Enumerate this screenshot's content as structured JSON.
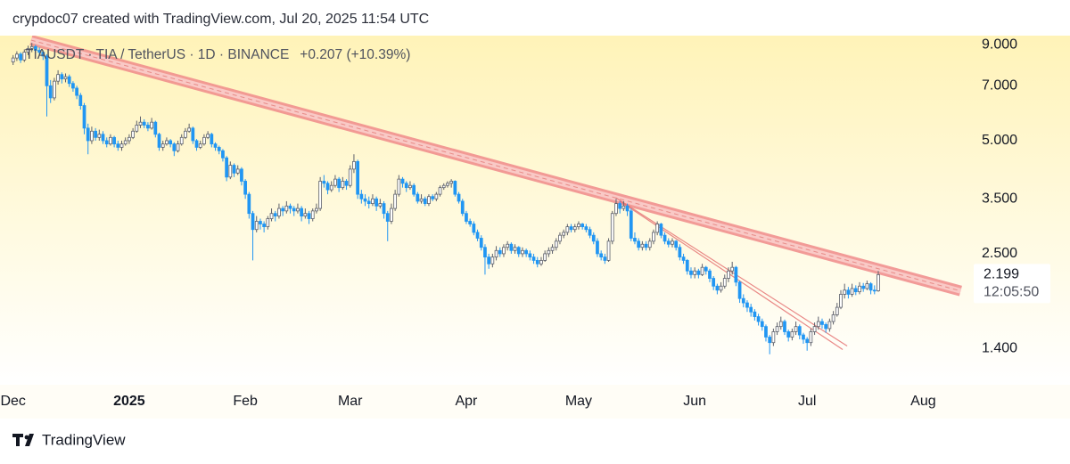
{
  "chart_data": {
    "type": "candlestick",
    "header": "crypdoc07 created with TradingView.com, Jul 20, 2025 11:54 UTC",
    "symbol": "TIAUSDT · TIA / TetherUS · 1D · BINANCE",
    "change_text": "+0.207 (+10.39%)",
    "last_price": {
      "value": 2.199,
      "label": "2.199"
    },
    "countdown": "12:05:50",
    "brand": "TradingView",
    "log_scale": true,
    "grid": false,
    "up_color": "#ffffff",
    "down_color": "#2196f3",
    "ylim": [
      1.12,
      9.52
    ],
    "yticks": [
      {
        "value": 1.4,
        "label": "1.400"
      },
      {
        "value": 2.5,
        "label": "2.500"
      },
      {
        "value": 3.5,
        "label": "3.500"
      },
      {
        "value": 5,
        "label": "5.000"
      },
      {
        "value": 7,
        "label": "7.000"
      },
      {
        "value": 9,
        "label": "9.000"
      }
    ],
    "xlim": [
      -3.5,
      256
    ],
    "xticks": [
      {
        "value": 0,
        "label": "Dec"
      },
      {
        "value": 31,
        "label": "2025"
      },
      {
        "value": 62,
        "label": "Feb"
      },
      {
        "value": 90,
        "label": "Mar"
      },
      {
        "value": 121,
        "label": "Apr"
      },
      {
        "value": 151,
        "label": "May"
      },
      {
        "value": 182,
        "label": "Jun"
      },
      {
        "value": 212,
        "label": "Jul"
      },
      {
        "value": 243,
        "label": "Aug"
      }
    ],
    "trendlines": [
      {
        "start": [
          4.8,
          9.26
        ],
        "end": [
          253,
          1.99
        ],
        "color": "#f08a8a",
        "width": 12
      },
      {
        "start": [
          161,
          3.52
        ],
        "end": [
          222.7,
          1.42
        ],
        "color": "#e57373",
        "width": 1.2
      },
      {
        "start": [
          162,
          3.45
        ],
        "end": [
          221.5,
          1.39
        ],
        "color": "#e57373",
        "width": 1.2
      }
    ],
    "ohlc": [
      [
        8.1,
        8.45,
        7.95,
        8.3
      ],
      [
        8.3,
        8.65,
        8.15,
        8.5
      ],
      [
        8.5,
        8.6,
        8.05,
        8.2
      ],
      [
        8.2,
        8.75,
        8.1,
        8.6
      ],
      [
        8.6,
        8.95,
        8.45,
        8.8
      ],
      [
        8.8,
        9.1,
        8.6,
        8.9
      ],
      [
        8.9,
        9.0,
        8.55,
        8.7
      ],
      [
        8.7,
        8.85,
        8.45,
        8.6
      ],
      [
        8.6,
        8.7,
        8.2,
        8.4
      ],
      [
        8.4,
        8.5,
        5.8,
        7.0
      ],
      [
        7.0,
        7.25,
        6.3,
        6.5
      ],
      [
        6.5,
        7.35,
        6.4,
        7.2
      ],
      [
        7.2,
        7.7,
        7.05,
        7.5
      ],
      [
        7.5,
        7.6,
        7.1,
        7.3
      ],
      [
        7.3,
        7.55,
        7.15,
        7.4
      ],
      [
        7.4,
        7.5,
        6.95,
        7.1
      ],
      [
        7.1,
        7.2,
        6.75,
        6.9
      ],
      [
        6.9,
        7.0,
        6.45,
        6.6
      ],
      [
        6.6,
        6.7,
        6.05,
        6.2
      ],
      [
        6.2,
        6.3,
        5.2,
        5.4
      ],
      [
        5.4,
        5.55,
        4.6,
        5.0
      ],
      [
        5.0,
        5.45,
        4.9,
        5.3
      ],
      [
        5.3,
        5.4,
        5.0,
        5.1
      ],
      [
        5.1,
        5.35,
        5.0,
        5.2
      ],
      [
        5.2,
        5.3,
        4.9,
        5.0
      ],
      [
        5.0,
        5.1,
        4.8,
        4.9
      ],
      [
        4.9,
        5.2,
        4.85,
        5.1
      ],
      [
        5.1,
        5.15,
        4.8,
        4.9
      ],
      [
        4.9,
        5.0,
        4.7,
        4.8
      ],
      [
        4.8,
        5.0,
        4.7,
        4.9
      ],
      [
        4.9,
        5.1,
        4.85,
        5.0
      ],
      [
        5.0,
        5.2,
        4.9,
        5.1
      ],
      [
        5.1,
        5.4,
        5.05,
        5.3
      ],
      [
        5.3,
        5.65,
        5.25,
        5.5
      ],
      [
        5.5,
        5.8,
        5.4,
        5.6
      ],
      [
        5.6,
        5.7,
        5.4,
        5.5
      ],
      [
        5.5,
        5.6,
        5.3,
        5.4
      ],
      [
        5.4,
        5.75,
        5.35,
        5.6
      ],
      [
        5.6,
        5.65,
        5.1,
        5.2
      ],
      [
        5.2,
        5.25,
        4.7,
        4.8
      ],
      [
        4.8,
        5.0,
        4.7,
        4.9
      ],
      [
        4.9,
        5.1,
        4.85,
        5.0
      ],
      [
        5.0,
        5.05,
        4.8,
        4.9
      ],
      [
        4.9,
        4.95,
        4.55,
        4.7
      ],
      [
        4.7,
        5.0,
        4.65,
        4.9
      ],
      [
        4.9,
        5.2,
        4.85,
        5.1
      ],
      [
        5.1,
        5.4,
        5.05,
        5.3
      ],
      [
        5.3,
        5.55,
        5.25,
        5.4
      ],
      [
        5.4,
        5.45,
        4.9,
        5.0
      ],
      [
        5.0,
        5.05,
        4.7,
        4.8
      ],
      [
        4.8,
        5.0,
        4.75,
        4.9
      ],
      [
        4.9,
        5.2,
        4.85,
        5.1
      ],
      [
        5.1,
        5.3,
        5.05,
        5.2
      ],
      [
        5.2,
        5.25,
        4.8,
        4.9
      ],
      [
        4.9,
        4.95,
        4.7,
        4.8
      ],
      [
        4.8,
        4.85,
        4.6,
        4.7
      ],
      [
        4.7,
        4.75,
        4.4,
        4.5
      ],
      [
        4.5,
        4.55,
        3.9,
        4.0
      ],
      [
        4.0,
        4.4,
        3.95,
        4.3
      ],
      [
        4.3,
        4.35,
        4.0,
        4.1
      ],
      [
        4.1,
        4.3,
        4.05,
        4.2
      ],
      [
        4.2,
        4.25,
        3.8,
        3.9
      ],
      [
        3.9,
        3.95,
        3.5,
        3.6
      ],
      [
        3.6,
        3.65,
        3.1,
        3.2
      ],
      [
        3.2,
        3.25,
        2.4,
        2.9
      ],
      [
        2.9,
        3.15,
        2.85,
        3.05
      ],
      [
        3.05,
        3.1,
        2.9,
        3.0
      ],
      [
        3.0,
        3.05,
        2.85,
        2.95
      ],
      [
        2.95,
        3.15,
        2.9,
        3.1
      ],
      [
        3.1,
        3.3,
        3.05,
        3.2
      ],
      [
        3.2,
        3.25,
        3.05,
        3.15
      ],
      [
        3.15,
        3.4,
        3.1,
        3.3
      ],
      [
        3.3,
        3.35,
        3.15,
        3.25
      ],
      [
        3.25,
        3.45,
        3.2,
        3.35
      ],
      [
        3.35,
        3.4,
        3.2,
        3.3
      ],
      [
        3.3,
        3.35,
        3.15,
        3.25
      ],
      [
        3.25,
        3.4,
        3.2,
        3.3
      ],
      [
        3.3,
        3.35,
        3.05,
        3.15
      ],
      [
        3.15,
        3.3,
        3.1,
        3.2
      ],
      [
        3.2,
        3.25,
        3.0,
        3.1
      ],
      [
        3.1,
        3.3,
        3.05,
        3.25
      ],
      [
        3.25,
        3.4,
        3.2,
        3.3
      ],
      [
        3.3,
        4.0,
        3.25,
        3.9
      ],
      [
        3.9,
        4.05,
        3.75,
        3.85
      ],
      [
        3.85,
        3.9,
        3.6,
        3.7
      ],
      [
        3.7,
        3.9,
        3.65,
        3.8
      ],
      [
        3.8,
        4.05,
        3.75,
        3.95
      ],
      [
        3.95,
        4.0,
        3.65,
        3.75
      ],
      [
        3.75,
        4.0,
        3.7,
        3.9
      ],
      [
        3.9,
        3.95,
        3.7,
        3.8
      ],
      [
        3.8,
        4.3,
        3.75,
        4.2
      ],
      [
        4.2,
        4.6,
        4.1,
        4.4
      ],
      [
        4.4,
        4.45,
        3.5,
        3.6
      ],
      [
        3.6,
        3.7,
        3.4,
        3.5
      ],
      [
        3.5,
        3.6,
        3.35,
        3.45
      ],
      [
        3.45,
        3.55,
        3.3,
        3.4
      ],
      [
        3.4,
        3.6,
        3.35,
        3.5
      ],
      [
        3.5,
        3.55,
        3.25,
        3.35
      ],
      [
        3.35,
        3.5,
        3.3,
        3.4
      ],
      [
        3.4,
        3.45,
        3.1,
        3.2
      ],
      [
        3.2,
        3.25,
        2.7,
        3.05
      ],
      [
        3.05,
        3.4,
        3.0,
        3.3
      ],
      [
        3.3,
        3.7,
        3.25,
        3.6
      ],
      [
        3.6,
        4.05,
        3.55,
        3.95
      ],
      [
        3.95,
        4.0,
        3.75,
        3.85
      ],
      [
        3.85,
        3.9,
        3.65,
        3.75
      ],
      [
        3.75,
        3.9,
        3.7,
        3.8
      ],
      [
        3.8,
        3.85,
        3.55,
        3.6
      ],
      [
        3.6,
        3.65,
        3.4,
        3.45
      ],
      [
        3.45,
        3.6,
        3.4,
        3.5
      ],
      [
        3.5,
        3.55,
        3.35,
        3.4
      ],
      [
        3.4,
        3.6,
        3.35,
        3.55
      ],
      [
        3.55,
        3.6,
        3.45,
        3.5
      ],
      [
        3.5,
        3.65,
        3.45,
        3.6
      ],
      [
        3.6,
        3.8,
        3.55,
        3.75
      ],
      [
        3.75,
        3.85,
        3.7,
        3.8
      ],
      [
        3.8,
        3.9,
        3.75,
        3.85
      ],
      [
        3.85,
        3.95,
        3.75,
        3.9
      ],
      [
        3.9,
        3.92,
        3.55,
        3.6
      ],
      [
        3.6,
        3.65,
        3.4,
        3.45
      ],
      [
        3.45,
        3.5,
        3.15,
        3.2
      ],
      [
        3.2,
        3.25,
        3.0,
        3.05
      ],
      [
        3.05,
        3.1,
        2.95,
        3.0
      ],
      [
        3.0,
        3.05,
        2.8,
        2.85
      ],
      [
        2.85,
        2.9,
        2.7,
        2.75
      ],
      [
        2.75,
        2.8,
        2.55,
        2.6
      ],
      [
        2.6,
        2.65,
        2.2,
        2.45
      ],
      [
        2.45,
        2.5,
        2.28,
        2.35
      ],
      [
        2.35,
        2.5,
        2.3,
        2.45
      ],
      [
        2.45,
        2.62,
        2.4,
        2.55
      ],
      [
        2.55,
        2.6,
        2.45,
        2.5
      ],
      [
        2.5,
        2.65,
        2.45,
        2.6
      ],
      [
        2.6,
        2.7,
        2.55,
        2.65
      ],
      [
        2.65,
        2.68,
        2.5,
        2.55
      ],
      [
        2.55,
        2.65,
        2.5,
        2.6
      ],
      [
        2.6,
        2.62,
        2.45,
        2.5
      ],
      [
        2.5,
        2.6,
        2.45,
        2.55
      ],
      [
        2.55,
        2.58,
        2.45,
        2.5
      ],
      [
        2.5,
        2.55,
        2.4,
        2.45
      ],
      [
        2.45,
        2.5,
        2.35,
        2.4
      ],
      [
        2.4,
        2.45,
        2.3,
        2.35
      ],
      [
        2.35,
        2.45,
        2.32,
        2.4
      ],
      [
        2.4,
        2.55,
        2.38,
        2.5
      ],
      [
        2.5,
        2.6,
        2.45,
        2.55
      ],
      [
        2.55,
        2.65,
        2.5,
        2.6
      ],
      [
        2.6,
        2.75,
        2.55,
        2.7
      ],
      [
        2.7,
        2.85,
        2.65,
        2.8
      ],
      [
        2.8,
        2.9,
        2.75,
        2.85
      ],
      [
        2.85,
        3.0,
        2.8,
        2.95
      ],
      [
        2.95,
        3.0,
        2.85,
        2.9
      ],
      [
        2.9,
        3.0,
        2.85,
        2.95
      ],
      [
        2.95,
        3.05,
        2.9,
        3.0
      ],
      [
        3.0,
        3.02,
        2.9,
        2.95
      ],
      [
        2.95,
        3.0,
        2.85,
        2.9
      ],
      [
        2.9,
        2.95,
        2.75,
        2.8
      ],
      [
        2.8,
        2.85,
        2.65,
        2.7
      ],
      [
        2.7,
        2.75,
        2.45,
        2.5
      ],
      [
        2.5,
        2.55,
        2.4,
        2.45
      ],
      [
        2.45,
        2.5,
        2.35,
        2.4
      ],
      [
        2.4,
        2.75,
        2.38,
        2.7
      ],
      [
        2.7,
        3.25,
        2.65,
        3.2
      ],
      [
        3.2,
        3.5,
        3.15,
        3.4
      ],
      [
        3.4,
        3.45,
        3.2,
        3.3
      ],
      [
        3.3,
        3.45,
        3.25,
        3.35
      ],
      [
        3.35,
        3.4,
        3.15,
        3.25
      ],
      [
        3.25,
        3.3,
        2.7,
        2.75
      ],
      [
        2.75,
        2.85,
        2.65,
        2.7
      ],
      [
        2.7,
        2.75,
        2.55,
        2.6
      ],
      [
        2.6,
        2.7,
        2.55,
        2.65
      ],
      [
        2.65,
        2.7,
        2.55,
        2.6
      ],
      [
        2.6,
        2.75,
        2.55,
        2.7
      ],
      [
        2.7,
        2.9,
        2.65,
        2.85
      ],
      [
        2.85,
        3.05,
        2.8,
        3.0
      ],
      [
        3.0,
        3.02,
        2.75,
        2.8
      ],
      [
        2.8,
        2.85,
        2.65,
        2.7
      ],
      [
        2.7,
        2.75,
        2.6,
        2.65
      ],
      [
        2.65,
        2.75,
        2.6,
        2.7
      ],
      [
        2.7,
        2.72,
        2.55,
        2.6
      ],
      [
        2.6,
        2.65,
        2.4,
        2.45
      ],
      [
        2.45,
        2.5,
        2.35,
        2.4
      ],
      [
        2.4,
        2.42,
        2.2,
        2.25
      ],
      [
        2.25,
        2.3,
        2.15,
        2.2
      ],
      [
        2.2,
        2.3,
        2.15,
        2.25
      ],
      [
        2.25,
        2.28,
        2.15,
        2.2
      ],
      [
        2.2,
        2.35,
        2.18,
        2.3
      ],
      [
        2.3,
        2.32,
        2.2,
        2.25
      ],
      [
        2.25,
        2.28,
        2.1,
        2.15
      ],
      [
        2.15,
        2.18,
        2.0,
        2.05
      ],
      [
        2.05,
        2.08,
        1.95,
        2.0
      ],
      [
        2.0,
        2.1,
        1.97,
        2.05
      ],
      [
        2.05,
        2.2,
        2.02,
        2.15
      ],
      [
        2.15,
        2.3,
        2.1,
        2.25
      ],
      [
        2.25,
        2.38,
        2.2,
        2.3
      ],
      [
        2.3,
        2.32,
        2.05,
        2.1
      ],
      [
        2.1,
        2.12,
        1.85,
        1.9
      ],
      [
        1.9,
        1.95,
        1.8,
        1.85
      ],
      [
        1.85,
        1.88,
        1.75,
        1.8
      ],
      [
        1.8,
        1.84,
        1.7,
        1.75
      ],
      [
        1.75,
        1.78,
        1.66,
        1.7
      ],
      [
        1.7,
        1.73,
        1.61,
        1.65
      ],
      [
        1.65,
        1.68,
        1.56,
        1.6
      ],
      [
        1.6,
        1.62,
        1.46,
        1.5
      ],
      [
        1.5,
        1.52,
        1.35,
        1.45
      ],
      [
        1.45,
        1.58,
        1.42,
        1.55
      ],
      [
        1.55,
        1.64,
        1.52,
        1.6
      ],
      [
        1.6,
        1.7,
        1.57,
        1.65
      ],
      [
        1.65,
        1.67,
        1.52,
        1.55
      ],
      [
        1.55,
        1.57,
        1.46,
        1.5
      ],
      [
        1.5,
        1.58,
        1.47,
        1.55
      ],
      [
        1.55,
        1.65,
        1.52,
        1.6
      ],
      [
        1.6,
        1.62,
        1.48,
        1.52
      ],
      [
        1.52,
        1.54,
        1.44,
        1.48
      ],
      [
        1.48,
        1.5,
        1.38,
        1.45
      ],
      [
        1.45,
        1.58,
        1.42,
        1.55
      ],
      [
        1.55,
        1.64,
        1.52,
        1.6
      ],
      [
        1.6,
        1.7,
        1.57,
        1.65
      ],
      [
        1.65,
        1.68,
        1.58,
        1.62
      ],
      [
        1.62,
        1.64,
        1.54,
        1.58
      ],
      [
        1.58,
        1.68,
        1.55,
        1.65
      ],
      [
        1.65,
        1.76,
        1.62,
        1.72
      ],
      [
        1.72,
        1.85,
        1.7,
        1.8
      ],
      [
        1.8,
        2.0,
        1.78,
        1.95
      ],
      [
        1.95,
        2.08,
        1.9,
        2.0
      ],
      [
        2.0,
        2.04,
        1.9,
        1.95
      ],
      [
        1.95,
        2.08,
        1.92,
        2.02
      ],
      [
        2.02,
        2.06,
        1.94,
        1.98
      ],
      [
        1.98,
        2.1,
        1.95,
        2.05
      ],
      [
        2.05,
        2.09,
        1.98,
        2.02
      ],
      [
        2.02,
        2.12,
        2.0,
        2.08
      ],
      [
        2.08,
        2.1,
        1.95,
        2.0
      ],
      [
        2.0,
        2.06,
        1.95,
        1.992
      ],
      [
        1.992,
        2.25,
        1.98,
        2.199
      ]
    ]
  }
}
